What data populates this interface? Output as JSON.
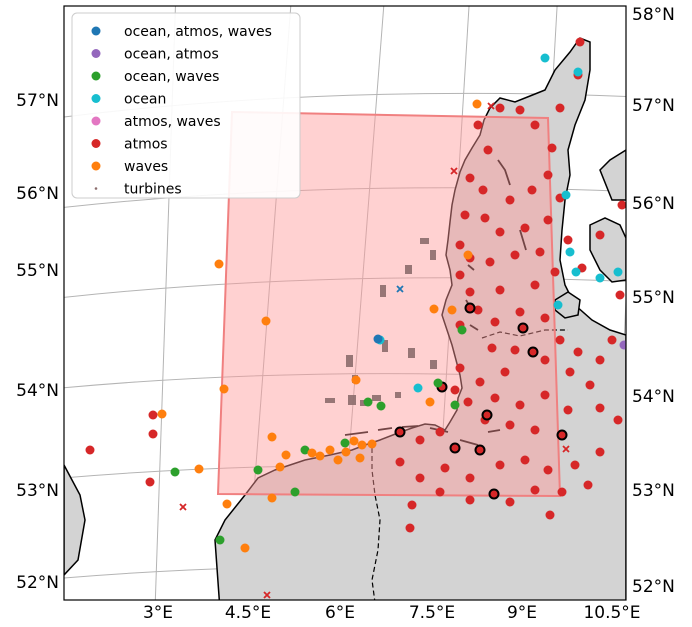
{
  "legend": [
    {
      "label": "ocean, atmos, waves",
      "color": "#1f77b4",
      "marker": "dot"
    },
    {
      "label": "ocean, atmos",
      "color": "#9467bd",
      "marker": "dot"
    },
    {
      "label": "ocean, waves",
      "color": "#2ca02c",
      "marker": "dot"
    },
    {
      "label": "ocean",
      "color": "#17becf",
      "marker": "dot"
    },
    {
      "label": "atmos, waves",
      "color": "#e377c2",
      "marker": "dot"
    },
    {
      "label": "atmos",
      "color": "#d62728",
      "marker": "dot"
    },
    {
      "label": "waves",
      "color": "#ff7f0e",
      "marker": "dot"
    },
    {
      "label": "turbines",
      "color": "#8c6d6d",
      "marker": "small"
    }
  ],
  "lat_labels_left": [
    "57°N",
    "56°N",
    "55°N",
    "54°N",
    "53°N",
    "52°N"
  ],
  "lat_labels_right": [
    "58°N",
    "57°N",
    "56°N",
    "55°N",
    "54°N",
    "53°N",
    "52°N"
  ],
  "lon_labels": [
    "3°E",
    "4.5°E",
    "6°E",
    "7.5°E",
    "9°E",
    "10.5°E"
  ],
  "colors": {
    "land": "#d3d3d3",
    "domain_fill": "#ffbfbf",
    "domain_edge": "#f08080",
    "grid": "#b0b0b0"
  }
}
